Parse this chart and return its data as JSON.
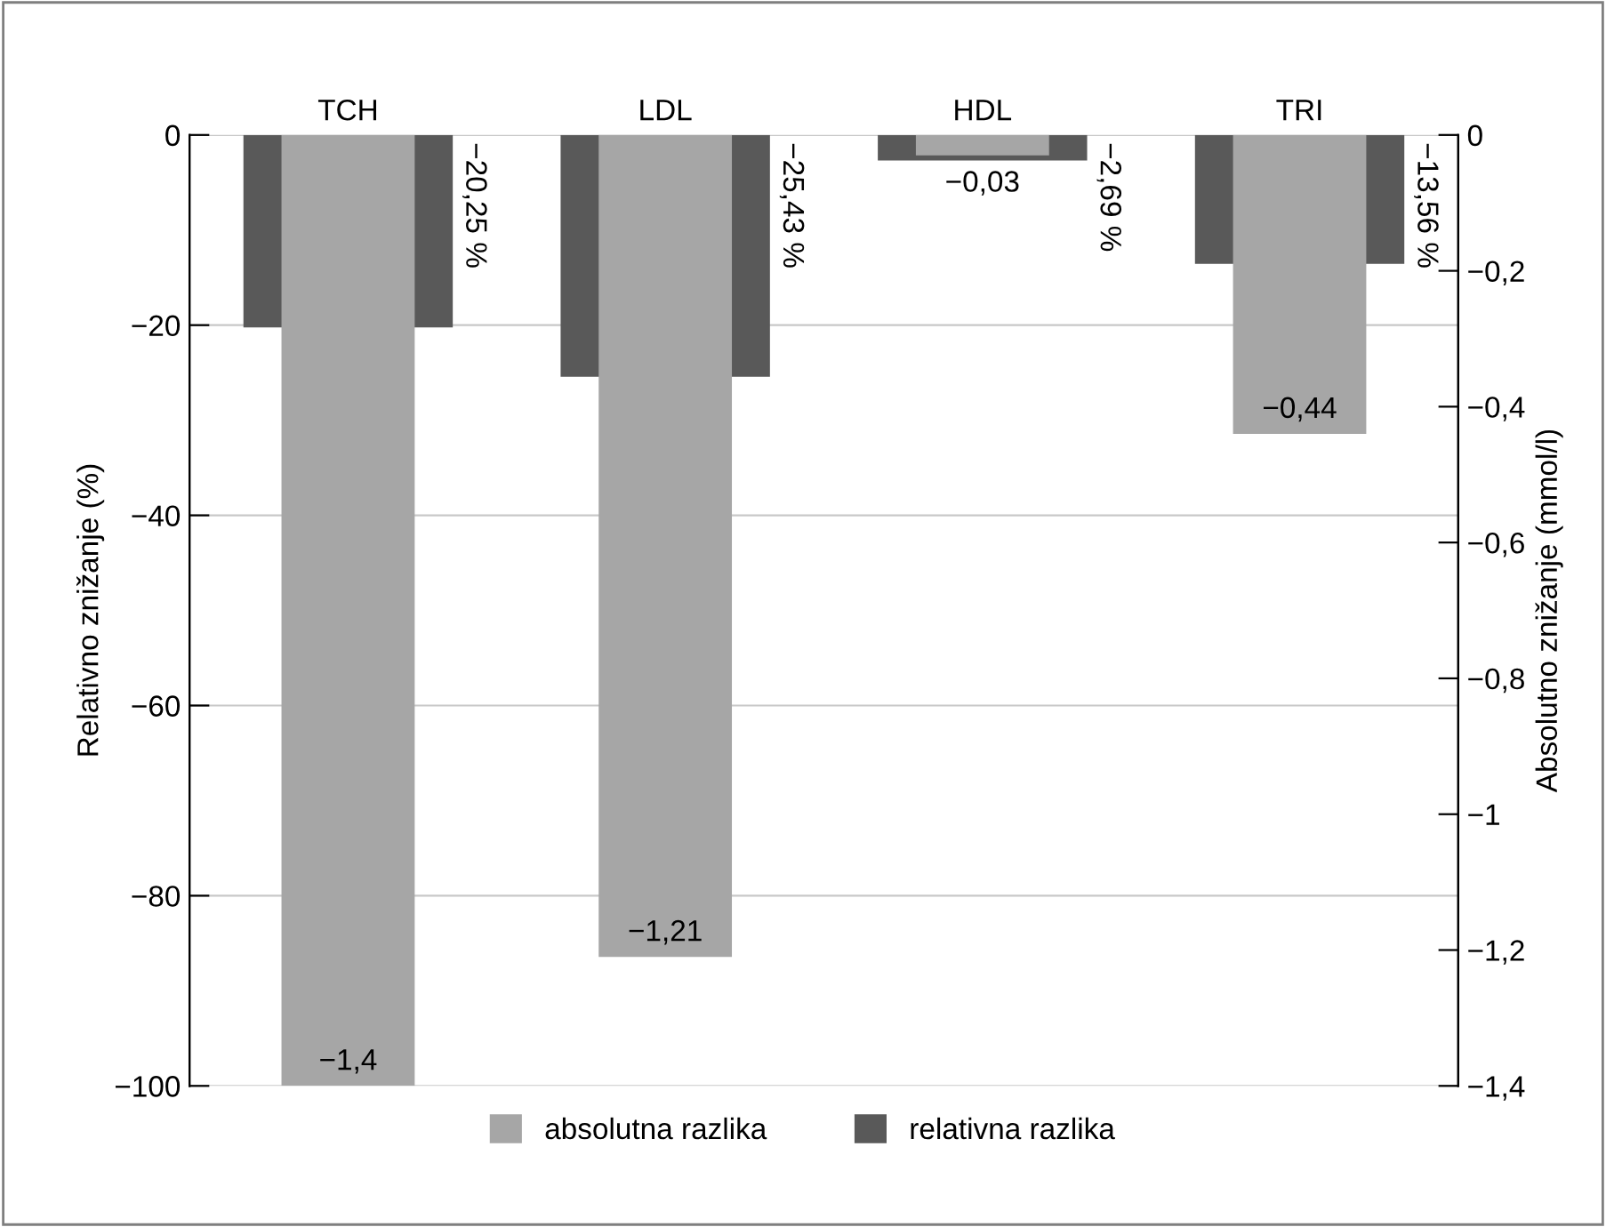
{
  "chart_data": {
    "type": "bar",
    "categories": [
      "TCH",
      "LDL",
      "HDL",
      "TRI"
    ],
    "ylabel": "Relativno znižanje (%)",
    "y2label": "Absolutno znižanje (mmol/l)",
    "ylim": [
      -100,
      0
    ],
    "yticks": [
      0,
      -20,
      -40,
      -60,
      -80,
      -100
    ],
    "y2lim": [
      -1.4,
      0
    ],
    "y2ticks": [
      {
        "value": 0,
        "label": "0"
      },
      {
        "value": -0.2,
        "label": "−0,2"
      },
      {
        "value": -0.4,
        "label": "−0,4"
      },
      {
        "value": -0.6,
        "label": "−0,6"
      },
      {
        "value": -0.8,
        "label": "−0,8"
      },
      {
        "value": -1,
        "label": "−1"
      },
      {
        "value": -1.2,
        "label": "−1,2"
      },
      {
        "value": -1.4,
        "label": "−1,4"
      }
    ],
    "series": [
      {
        "name": "absolutna razlika",
        "color": "#a6a6a6",
        "axis": "y2",
        "values": [
          -1.4,
          -1.21,
          -0.03,
          -0.44
        ],
        "value_labels": [
          "−1,4",
          "−1,21",
          "−0,03",
          "−0,44"
        ]
      },
      {
        "name": "relativna razlika",
        "color": "#595959",
        "values": [
          -20.25,
          -25.43,
          -2.69,
          -13.56
        ],
        "value_labels": [
          "−20,25 %",
          "−25,43 %",
          "−2,69 %",
          "−13,56 %"
        ]
      }
    ],
    "grid": "y",
    "legend": "bottom"
  }
}
